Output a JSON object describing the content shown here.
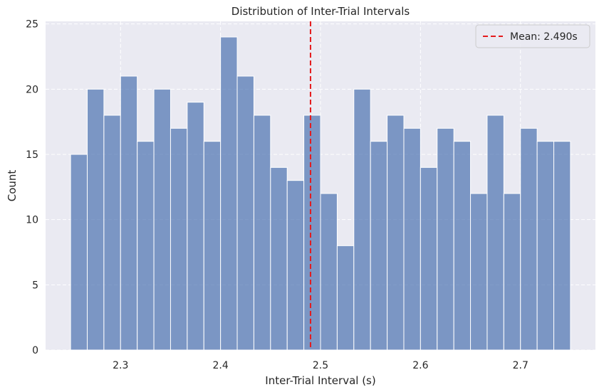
{
  "chart_data": {
    "type": "bar",
    "title": "Distribution of Inter-Trial Intervals",
    "xlabel": "Inter-Trial Interval (s)",
    "ylabel": "Count",
    "xlim": [
      2.225,
      2.775
    ],
    "ylim": [
      0,
      25.2
    ],
    "x_ticks": [
      2.3,
      2.4,
      2.5,
      2.6,
      2.7
    ],
    "x_tick_labels": [
      "2.3",
      "2.4",
      "2.5",
      "2.6",
      "2.7"
    ],
    "y_ticks": [
      0,
      5,
      10,
      15,
      20,
      25
    ],
    "y_tick_labels": [
      "0",
      "5",
      "10",
      "15",
      "20",
      "25"
    ],
    "bin_start": 2.25,
    "bin_width": 0.016667,
    "counts": [
      15,
      20,
      18,
      21,
      16,
      20,
      17,
      19,
      16,
      24,
      21,
      18,
      14,
      13,
      18,
      12,
      8,
      20,
      16,
      18,
      17,
      14,
      17,
      16,
      12,
      18,
      12,
      17,
      16,
      16
    ],
    "mean_line": {
      "value": 2.49,
      "label": "Mean: 2.490s",
      "color": "#e41a1c"
    },
    "bar_color": "#4c72b0",
    "background_color": "#eaeaf2",
    "grid": true,
    "legend": {
      "placement": "top-right",
      "entries": [
        "Mean: 2.490s"
      ]
    }
  }
}
